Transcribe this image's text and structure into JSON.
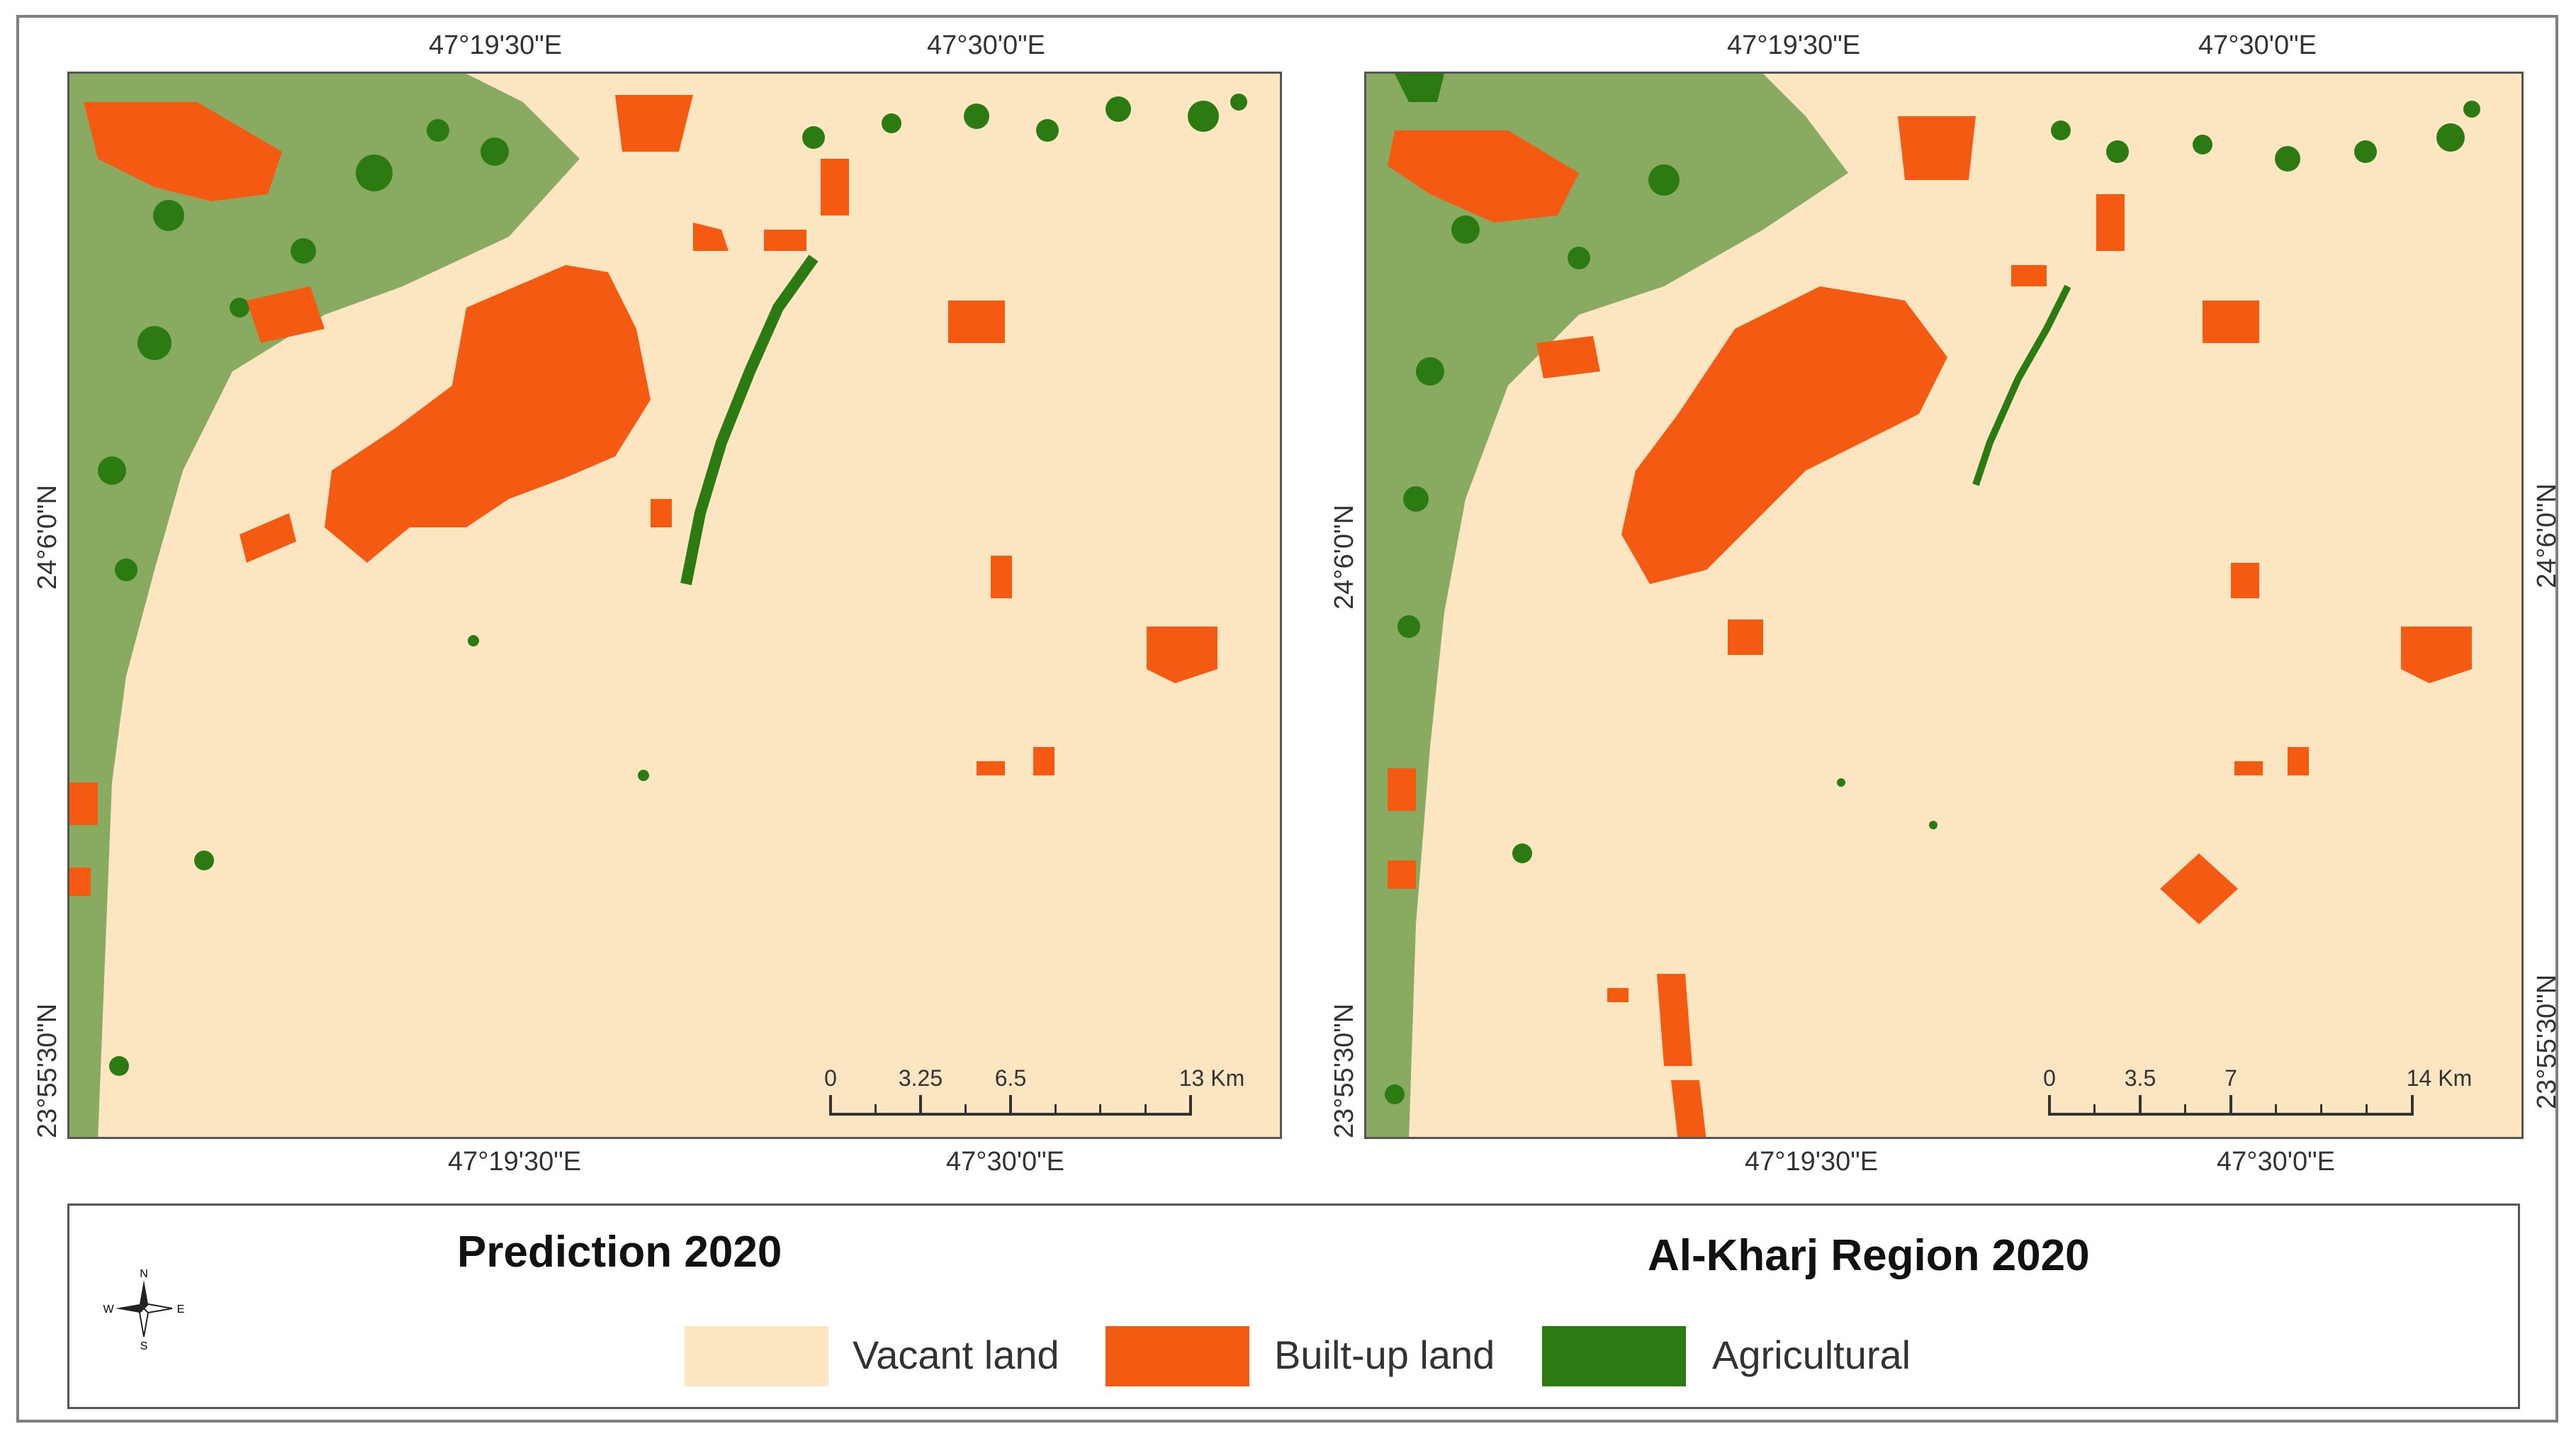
{
  "colors": {
    "vacant": "#fbe6c1",
    "builtup": "#f55a13",
    "agricultural": "#2c7a12",
    "frame": "#555555"
  },
  "panels": [
    {
      "title": "Prediction 2020",
      "coords": {
        "top_left": "47°19'30\"E",
        "top_right": "47°30'0\"E",
        "bottom_left": "47°19'30\"E",
        "bottom_right": "47°30'0\"E",
        "left_upper": "24°6'0\"N",
        "left_lower": "23°55'30\"N"
      },
      "scale": {
        "labels": [
          "0",
          "3.25",
          "6.5",
          "13 Km"
        ]
      }
    },
    {
      "title": "Al-Kharj Region 2020",
      "coords": {
        "top_left": "47°19'30\"E",
        "top_right": "47°30'0\"E",
        "bottom_left": "47°19'30\"E",
        "bottom_right": "47°30'0\"E",
        "left_upper": "24°6'0\"N",
        "left_lower": "23°55'30\"N",
        "right_upper": "24°6'0\"N",
        "right_lower": "23°55'30\"N"
      },
      "scale": {
        "labels": [
          "0",
          "3.5",
          "7",
          "14 Km"
        ]
      }
    }
  ],
  "legend": {
    "items": [
      {
        "label": "Vacant land",
        "color": "#fbe6c1"
      },
      {
        "label": "Built-up land",
        "color": "#f55a13"
      },
      {
        "label": "Agricultural",
        "color": "#2c7a12"
      }
    ],
    "compass": {
      "n": "N",
      "s": "S",
      "e": "E",
      "w": "W"
    }
  }
}
